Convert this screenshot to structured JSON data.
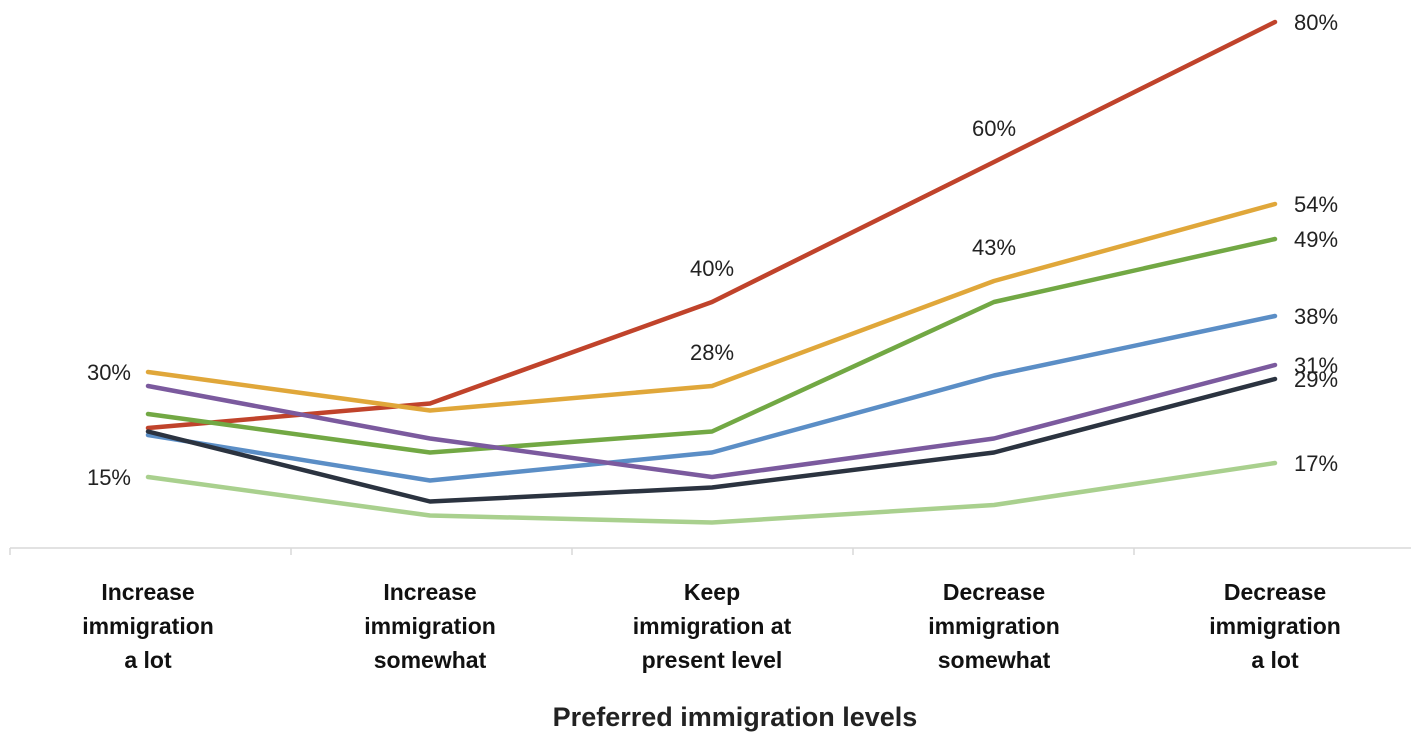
{
  "chart_data": {
    "type": "line",
    "title": "",
    "xlabel": "Preferred immigration levels",
    "ylabel": "",
    "ylim": [
      0,
      85
    ],
    "grid": false,
    "categories": [
      [
        "Increase",
        "immigration",
        "a lot"
      ],
      [
        "Increase",
        "immigration",
        "somewhat"
      ],
      [
        "Keep",
        "immigration at",
        "present level"
      ],
      [
        "Decrease",
        "immigration",
        "somewhat"
      ],
      [
        "Decrease",
        "immigration",
        "a lot"
      ]
    ],
    "series": [
      {
        "color": "#c0432b",
        "values": [
          22,
          25.5,
          40,
          60,
          80
        ],
        "labels": [
          "",
          "",
          "40%",
          "60%",
          "80%"
        ]
      },
      {
        "color": "#e0a73a",
        "values": [
          30,
          24.5,
          28,
          43,
          54
        ],
        "labels": [
          "30%",
          "",
          "28%",
          "43%",
          "54%"
        ]
      },
      {
        "color": "#72a844",
        "values": [
          24,
          18.5,
          21.5,
          40,
          49
        ],
        "labels": [
          "",
          "",
          "",
          "",
          "49%"
        ]
      },
      {
        "color": "#5b8ec6",
        "values": [
          21,
          14.5,
          18.5,
          29.5,
          38
        ],
        "labels": [
          "",
          "",
          "",
          "",
          "38%"
        ]
      },
      {
        "color": "#7b5a9e",
        "values": [
          28,
          20.5,
          15,
          20.5,
          31
        ],
        "labels": [
          "",
          "",
          "",
          "",
          "31%"
        ]
      },
      {
        "color": "#2b3340",
        "values": [
          21.5,
          11.5,
          13.5,
          18.5,
          29
        ],
        "labels": [
          "",
          "",
          "",
          "",
          "29%"
        ]
      },
      {
        "color": "#a9d08e",
        "values": [
          15,
          9.5,
          8.5,
          11,
          17
        ],
        "labels": [
          "15%",
          "",
          "",
          "",
          "17%"
        ]
      }
    ]
  }
}
